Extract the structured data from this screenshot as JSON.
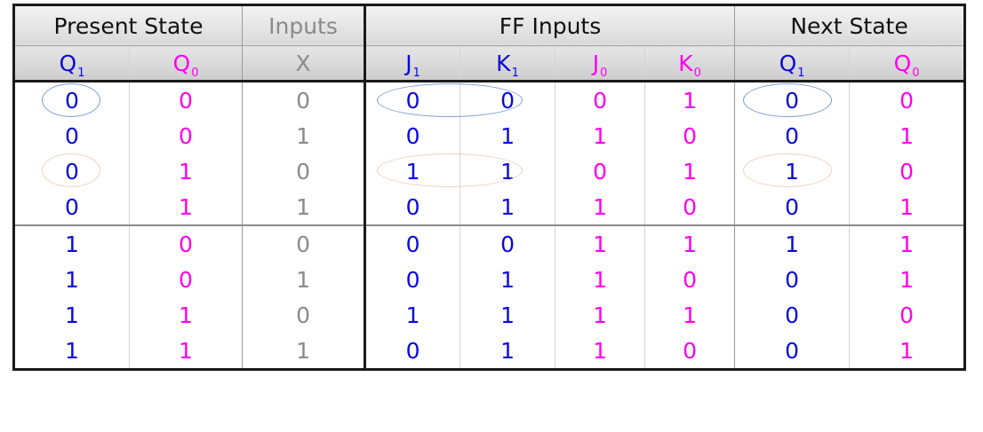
{
  "groups": {
    "present_state": "Present State",
    "inputs": "Inputs",
    "ff_inputs": "FF Inputs",
    "next_state": "Next State"
  },
  "vars": {
    "q1": {
      "base": "Q",
      "sub": "1"
    },
    "q0": {
      "base": "Q",
      "sub": "0"
    },
    "x": {
      "base": "X",
      "sub": ""
    },
    "j1": {
      "base": "J",
      "sub": "1"
    },
    "k1": {
      "base": "K",
      "sub": "1"
    },
    "j0": {
      "base": "J",
      "sub": "0"
    },
    "k0": {
      "base": "K",
      "sub": "0"
    },
    "nq1": {
      "base": "Q",
      "sub": "1"
    },
    "nq0": {
      "base": "Q",
      "sub": "0"
    }
  },
  "rows": [
    [
      "0",
      "0",
      "0",
      "0",
      "0",
      "0",
      "1",
      "0",
      "0"
    ],
    [
      "0",
      "0",
      "1",
      "0",
      "1",
      "1",
      "0",
      "0",
      "1"
    ],
    [
      "0",
      "1",
      "0",
      "1",
      "1",
      "0",
      "1",
      "1",
      "0"
    ],
    [
      "0",
      "1",
      "1",
      "0",
      "1",
      "1",
      "0",
      "0",
      "1"
    ],
    [
      "1",
      "0",
      "0",
      "0",
      "0",
      "1",
      "1",
      "1",
      "1"
    ],
    [
      "1",
      "0",
      "1",
      "0",
      "1",
      "1",
      "0",
      "0",
      "1"
    ],
    [
      "1",
      "1",
      "0",
      "1",
      "1",
      "1",
      "1",
      "0",
      "0"
    ],
    [
      "1",
      "1",
      "1",
      "0",
      "1",
      "1",
      "0",
      "0",
      "1"
    ]
  ],
  "colors": {
    "q1_blue": "#0a0ad8",
    "q0_magenta": "#ff00ee",
    "input_gray": "#8a8a8a",
    "highlight_blue": "#7d9cd4",
    "highlight_peach": "#ecd2c2"
  }
}
